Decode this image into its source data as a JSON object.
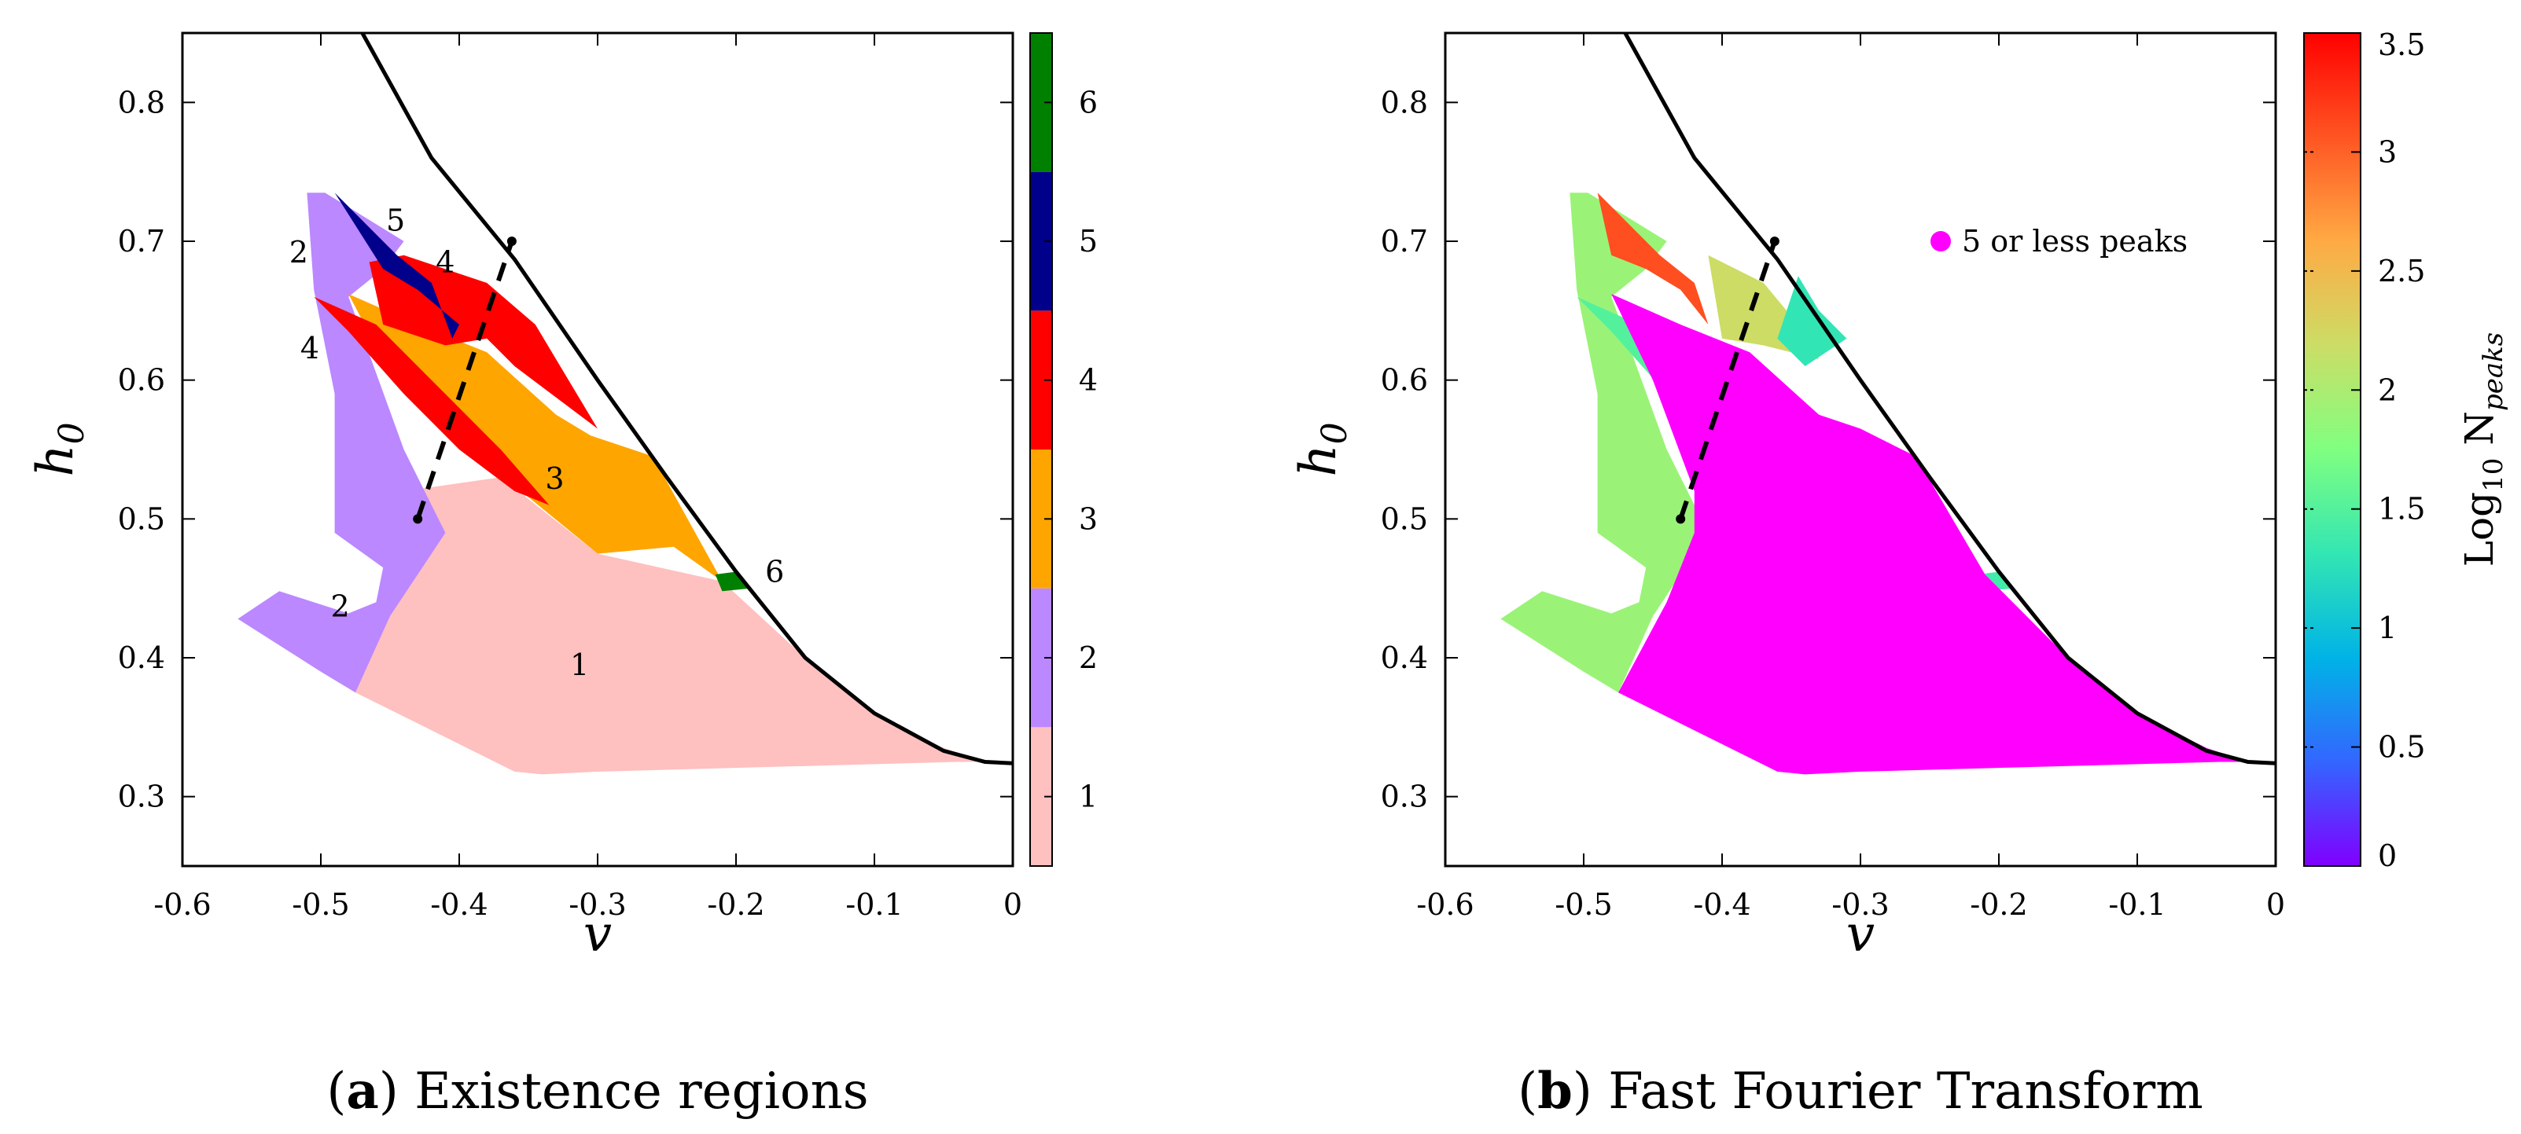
{
  "chart_data": [
    {
      "type": "heatmap",
      "panel": "a",
      "caption_letter": "a",
      "caption_text": " Existence regions",
      "xlabel": "v",
      "ylabel": "h",
      "ylabel_sub": "0",
      "xlim": [
        -0.6,
        0
      ],
      "ylim": [
        0.25,
        0.85
      ],
      "x_ticks": [
        -0.6,
        -0.5,
        -0.4,
        -0.3,
        -0.2,
        -0.1,
        0
      ],
      "x_tick_labels": [
        "-0.6",
        "-0.5",
        "-0.4",
        "-0.3",
        "-0.2",
        "-0.1",
        "0"
      ],
      "y_ticks": [
        0.3,
        0.4,
        0.5,
        0.6,
        0.7,
        0.8
      ],
      "y_tick_labels": [
        "0.3",
        "0.4",
        "0.5",
        "0.6",
        "0.7",
        "0.8"
      ],
      "colorbar": {
        "type": "discrete",
        "levels": [
          1,
          2,
          3,
          4,
          5,
          6
        ],
        "labels": [
          "1",
          "2",
          "3",
          "4",
          "5",
          "6"
        ],
        "colors": [
          "#ffc0c0",
          "#bb88ff",
          "#ffa500",
          "#ff0000",
          "#00008b",
          "#008000"
        ]
      },
      "regions": [
        {
          "level": 1,
          "polygon": [
            [
              -0.475,
              0.375
            ],
            [
              -0.44,
              0.52
            ],
            [
              -0.37,
              0.53
            ],
            [
              -0.3,
              0.475
            ],
            [
              -0.21,
              0.455
            ],
            [
              -0.15,
              0.4
            ],
            [
              -0.1,
              0.36
            ],
            [
              -0.05,
              0.335
            ],
            [
              -0.02,
              0.325
            ],
            [
              -0.04,
              0.325
            ],
            [
              -0.3,
              0.318
            ],
            [
              -0.34,
              0.316
            ],
            [
              -0.36,
              0.318
            ]
          ]
        },
        {
          "level": 2,
          "polygon": [
            [
              -0.56,
              0.428
            ],
            [
              -0.53,
              0.448
            ],
            [
              -0.48,
              0.432
            ],
            [
              -0.46,
              0.44
            ],
            [
              -0.455,
              0.465
            ],
            [
              -0.49,
              0.49
            ],
            [
              -0.49,
              0.59
            ],
            [
              -0.505,
              0.665
            ],
            [
              -0.51,
              0.735
            ],
            [
              -0.497,
              0.735
            ],
            [
              -0.44,
              0.7
            ],
            [
              -0.455,
              0.68
            ],
            [
              -0.48,
              0.66
            ],
            [
              -0.44,
              0.55
            ],
            [
              -0.42,
              0.51
            ],
            [
              -0.41,
              0.49
            ],
            [
              -0.45,
              0.43
            ],
            [
              -0.475,
              0.375
            ],
            [
              -0.5,
              0.39
            ]
          ]
        },
        {
          "level": 3,
          "polygon": [
            [
              -0.48,
              0.662
            ],
            [
              -0.43,
              0.64
            ],
            [
              -0.38,
              0.62
            ],
            [
              -0.33,
              0.575
            ],
            [
              -0.305,
              0.56
            ],
            [
              -0.26,
              0.545
            ],
            [
              -0.21,
              0.455
            ],
            [
              -0.245,
              0.48
            ],
            [
              -0.3,
              0.475
            ],
            [
              -0.37,
              0.532
            ],
            [
              -0.41,
              0.575
            ],
            [
              -0.45,
              0.605
            ]
          ]
        },
        {
          "level": 4,
          "polygon": [
            [
              -0.505,
              0.66
            ],
            [
              -0.46,
              0.64
            ],
            [
              -0.42,
              0.6
            ],
            [
              -0.37,
              0.55
            ],
            [
              -0.335,
              0.51
            ],
            [
              -0.36,
              0.52
            ],
            [
              -0.4,
              0.55
            ],
            [
              -0.44,
              0.59
            ],
            [
              -0.48,
              0.635
            ]
          ]
        },
        {
          "level": 4,
          "polygon": [
            [
              -0.465,
              0.685
            ],
            [
              -0.44,
              0.69
            ],
            [
              -0.38,
              0.67
            ],
            [
              -0.345,
              0.64
            ],
            [
              -0.33,
              0.615
            ],
            [
              -0.3,
              0.565
            ],
            [
              -0.32,
              0.58
            ],
            [
              -0.36,
              0.61
            ],
            [
              -0.38,
              0.63
            ],
            [
              -0.41,
              0.625
            ],
            [
              -0.455,
              0.64
            ]
          ]
        },
        {
          "level": 5,
          "polygon": [
            [
              -0.49,
              0.735
            ],
            [
              -0.475,
              0.72
            ],
            [
              -0.445,
              0.69
            ],
            [
              -0.42,
              0.67
            ],
            [
              -0.405,
              0.63
            ],
            [
              -0.4,
              0.64
            ],
            [
              -0.43,
              0.665
            ],
            [
              -0.455,
              0.68
            ]
          ]
        },
        {
          "level": 6,
          "polygon": [
            [
              -0.215,
              0.46
            ],
            [
              -0.2,
              0.462
            ],
            [
              -0.19,
              0.45
            ],
            [
              -0.21,
              0.448
            ]
          ]
        }
      ],
      "region_labels": [
        {
          "text": "5",
          "x": -0.446,
          "y": 0.713
        },
        {
          "text": "2",
          "x": -0.516,
          "y": 0.69
        },
        {
          "text": "4",
          "x": -0.41,
          "y": 0.683
        },
        {
          "text": "4",
          "x": -0.508,
          "y": 0.621
        },
        {
          "text": "3",
          "x": -0.331,
          "y": 0.527
        },
        {
          "text": "2",
          "x": -0.486,
          "y": 0.435
        },
        {
          "text": "6",
          "x": -0.172,
          "y": 0.46
        },
        {
          "text": "1",
          "x": -0.313,
          "y": 0.393
        }
      ],
      "boundary_curve": {
        "x": [
          -0.47,
          -0.42,
          -0.36,
          -0.3,
          -0.25,
          -0.2,
          -0.15,
          -0.1,
          -0.05,
          -0.02,
          0
        ],
        "y": [
          0.85,
          0.76,
          0.687,
          0.6,
          0.53,
          0.462,
          0.4,
          0.36,
          0.333,
          0.325,
          0.324
        ]
      },
      "dashed_line": {
        "x": [
          -0.43,
          -0.362
        ],
        "y": [
          0.5,
          0.7
        ]
      }
    },
    {
      "type": "heatmap",
      "panel": "b",
      "caption_letter": "b",
      "caption_text": " Fast Fourier Transform",
      "xlabel": "v",
      "ylabel": "h",
      "ylabel_sub": "0",
      "xlim": [
        -0.6,
        0
      ],
      "ylim": [
        0.25,
        0.85
      ],
      "x_ticks": [
        -0.6,
        -0.5,
        -0.4,
        -0.3,
        -0.2,
        -0.1,
        0
      ],
      "x_tick_labels": [
        "-0.6",
        "-0.5",
        "-0.4",
        "-0.3",
        "-0.2",
        "-0.1",
        "0"
      ],
      "y_ticks": [
        0.3,
        0.4,
        0.5,
        0.6,
        0.7,
        0.8
      ],
      "y_tick_labels": [
        "0.3",
        "0.4",
        "0.5",
        "0.6",
        "0.7",
        "0.8"
      ],
      "colorbar": {
        "type": "continuous",
        "label_main": "Log",
        "label_sub": "10",
        "label_rest": " N",
        "label_italic_sub": "peaks",
        "range": [
          0,
          3.5
        ],
        "ticks": [
          0,
          0.5,
          1,
          1.5,
          2,
          2.5,
          3,
          3.5
        ],
        "tick_labels": [
          "0",
          "0.5",
          "1",
          "1.5",
          "2",
          "2.5",
          "3",
          "3.5"
        ],
        "colors": [
          "#8000ff",
          "#3366ff",
          "#00b3e6",
          "#33e6b3",
          "#80ff80",
          "#ccdd66",
          "#ffaa44",
          "#ff5522",
          "#ff0000"
        ]
      },
      "legend": {
        "label": "5 or less peaks",
        "color": "#ff00ff",
        "placement": "top-right"
      },
      "regions": [
        {
          "value": 1.9,
          "polygon": [
            [
              -0.56,
              0.428
            ],
            [
              -0.53,
              0.448
            ],
            [
              -0.48,
              0.432
            ],
            [
              -0.46,
              0.44
            ],
            [
              -0.455,
              0.465
            ],
            [
              -0.49,
              0.49
            ],
            [
              -0.49,
              0.59
            ],
            [
              -0.505,
              0.665
            ],
            [
              -0.51,
              0.735
            ],
            [
              -0.497,
              0.735
            ],
            [
              -0.44,
              0.7
            ],
            [
              -0.455,
              0.68
            ],
            [
              -0.48,
              0.66
            ],
            [
              -0.44,
              0.55
            ],
            [
              -0.42,
              0.51
            ],
            [
              -0.41,
              0.49
            ],
            [
              -0.45,
              0.43
            ],
            [
              -0.475,
              0.375
            ],
            [
              -0.5,
              0.39
            ]
          ]
        },
        {
          "value": 3.1,
          "polygon": [
            [
              -0.49,
              0.735
            ],
            [
              -0.475,
              0.72
            ],
            [
              -0.445,
              0.69
            ],
            [
              -0.42,
              0.67
            ],
            [
              -0.41,
              0.64
            ],
            [
              -0.43,
              0.665
            ],
            [
              -0.455,
              0.68
            ],
            [
              -0.48,
              0.69
            ]
          ]
        },
        {
          "value": 2.2,
          "polygon": [
            [
              -0.41,
              0.69
            ],
            [
              -0.37,
              0.67
            ],
            [
              -0.345,
              0.64
            ],
            [
              -0.33,
              0.615
            ],
            [
              -0.37,
              0.625
            ],
            [
              -0.4,
              0.63
            ]
          ]
        },
        {
          "value": 1.3,
          "polygon": [
            [
              -0.345,
              0.675
            ],
            [
              -0.33,
              0.65
            ],
            [
              -0.31,
              0.63
            ],
            [
              -0.34,
              0.61
            ],
            [
              -0.36,
              0.63
            ]
          ]
        },
        {
          "value": 1.5,
          "polygon": [
            [
              -0.505,
              0.66
            ],
            [
              -0.46,
              0.64
            ],
            [
              -0.42,
              0.6
            ],
            [
              -0.37,
              0.55
            ],
            [
              -0.32,
              0.49
            ],
            [
              -0.36,
              0.52
            ],
            [
              -0.4,
              0.55
            ],
            [
              -0.44,
              0.59
            ],
            [
              -0.48,
              0.635
            ]
          ]
        },
        {
          "value": 1.4,
          "polygon": [
            [
              -0.215,
              0.46
            ],
            [
              -0.2,
              0.462
            ],
            [
              -0.19,
              0.45
            ],
            [
              -0.21,
              0.448
            ]
          ]
        }
      ],
      "low_peak_region": [
        [
          -0.48,
          0.662
        ],
        [
          -0.43,
          0.64
        ],
        [
          -0.38,
          0.62
        ],
        [
          -0.33,
          0.575
        ],
        [
          -0.3,
          0.565
        ],
        [
          -0.26,
          0.545
        ],
        [
          -0.21,
          0.46
        ],
        [
          -0.15,
          0.4
        ],
        [
          -0.1,
          0.36
        ],
        [
          -0.05,
          0.335
        ],
        [
          -0.02,
          0.325
        ],
        [
          -0.04,
          0.325
        ],
        [
          -0.3,
          0.318
        ],
        [
          -0.34,
          0.316
        ],
        [
          -0.36,
          0.318
        ],
        [
          -0.475,
          0.375
        ],
        [
          -0.44,
          0.44
        ],
        [
          -0.42,
          0.49
        ],
        [
          -0.42,
          0.52
        ],
        [
          -0.45,
          0.6
        ]
      ],
      "boundary_curve": {
        "x": [
          -0.47,
          -0.42,
          -0.36,
          -0.3,
          -0.25,
          -0.2,
          -0.15,
          -0.1,
          -0.05,
          -0.02,
          0
        ],
        "y": [
          0.85,
          0.76,
          0.687,
          0.6,
          0.53,
          0.462,
          0.4,
          0.36,
          0.333,
          0.325,
          0.324
        ]
      },
      "dashed_line": {
        "x": [
          -0.43,
          -0.362
        ],
        "y": [
          0.5,
          0.7
        ]
      }
    }
  ]
}
